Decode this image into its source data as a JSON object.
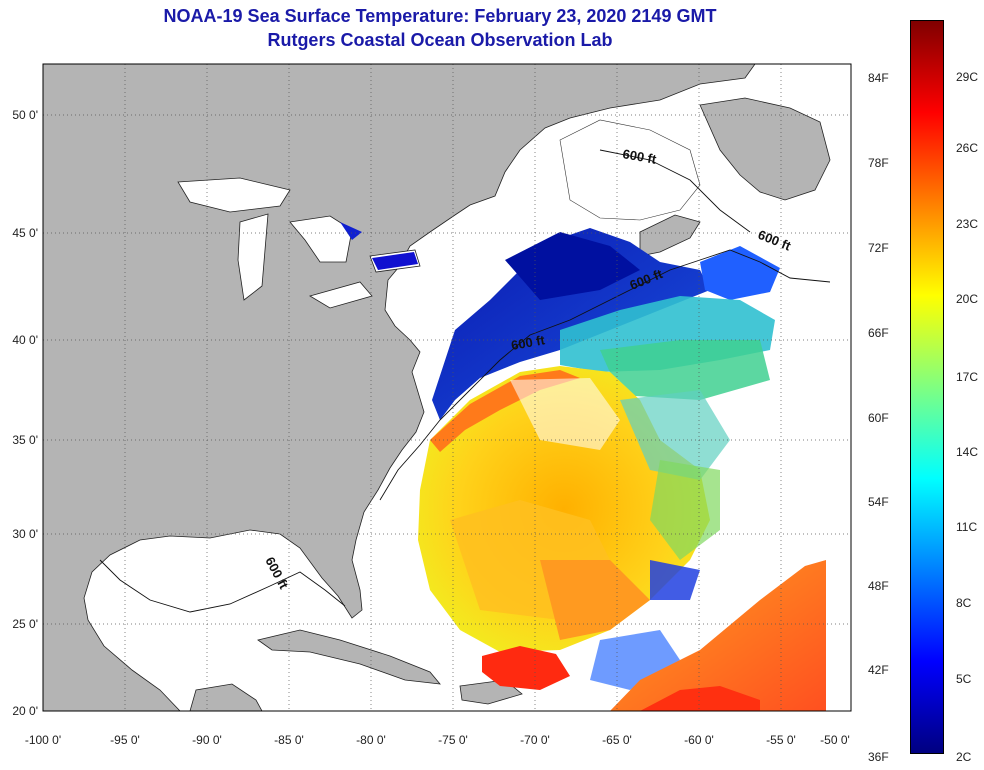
{
  "header": {
    "title": "NOAA-19 Sea Surface Temperature:  February 23, 2020 2149 GMT",
    "subtitle": "Rutgers Coastal Ocean Observation Lab"
  },
  "axes": {
    "lon_labels": [
      "-100 0'",
      "-95 0'",
      "-90 0'",
      "-85 0'",
      "-80 0'",
      "-75 0'",
      "-70 0'",
      "-65 0'",
      "-60 0'",
      "-55 0'",
      "-50 0'"
    ],
    "lat_labels": [
      "50 0'",
      "45 0'",
      "40 0'",
      "35 0'",
      "30 0'",
      "25 0'",
      "20 0'"
    ],
    "lon_range": [
      -100,
      -50
    ],
    "lat_range": [
      20,
      52
    ]
  },
  "contours": [
    "600 ft",
    "600 ft",
    "600 ft",
    "600 ft"
  ],
  "colorbar": {
    "fahrenheit": [
      "84F",
      "78F",
      "72F",
      "66F",
      "60F",
      "54F",
      "48F",
      "42F",
      "36F"
    ],
    "celsius": [
      "29C",
      "26C",
      "23C",
      "20C",
      "17C",
      "14C",
      "11C",
      "8C",
      "5C",
      "2C"
    ],
    "colors": [
      "#000080",
      "#0000ff",
      "#0080ff",
      "#00ffff",
      "#80ff80",
      "#ffff00",
      "#ff8000",
      "#ff0000",
      "#800000"
    ]
  },
  "colors": {
    "land": "#b4b4b4",
    "ocean_nodata": "#ffffff",
    "title": "#1a1aa8"
  }
}
